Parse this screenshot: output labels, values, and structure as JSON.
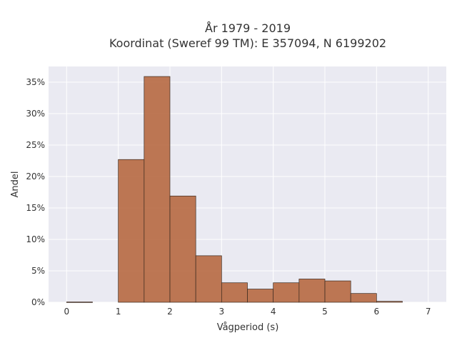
{
  "chart_data": {
    "type": "bar",
    "title_line1": "År 1979 - 2019",
    "title_line2": "Koordinat (Sweref 99 TM): E 357094, N 6199202",
    "xlabel": "Vågperiod (s)",
    "ylabel": "Andel",
    "xlim": [
      -0.35,
      7.35
    ],
    "ylim": [
      0,
      0.375
    ],
    "grid": true,
    "x_ticks": [
      0,
      1,
      2,
      3,
      4,
      5,
      6,
      7
    ],
    "y_ticks": [
      0,
      0.05,
      0.1,
      0.15,
      0.2,
      0.25,
      0.3,
      0.35
    ],
    "y_tick_labels": [
      "0%",
      "5%",
      "10%",
      "15%",
      "20%",
      "25%",
      "30%",
      "35%"
    ],
    "bin_width": 0.5,
    "bins": [
      {
        "x0": 0.0,
        "value": 0.0005
      },
      {
        "x0": 0.5,
        "value": 0.0
      },
      {
        "x0": 1.0,
        "value": 0.227
      },
      {
        "x0": 1.5,
        "value": 0.359
      },
      {
        "x0": 2.0,
        "value": 0.169
      },
      {
        "x0": 2.5,
        "value": 0.074
      },
      {
        "x0": 3.0,
        "value": 0.031
      },
      {
        "x0": 3.5,
        "value": 0.021
      },
      {
        "x0": 4.0,
        "value": 0.031
      },
      {
        "x0": 4.5,
        "value": 0.037
      },
      {
        "x0": 5.0,
        "value": 0.034
      },
      {
        "x0": 5.5,
        "value": 0.014
      },
      {
        "x0": 6.0,
        "value": 0.0015
      },
      {
        "x0": 6.5,
        "value": 0.0
      }
    ],
    "colors": {
      "bar": "#b5653c",
      "plot_bg": "#eaeaf2",
      "grid": "#ffffff"
    }
  }
}
